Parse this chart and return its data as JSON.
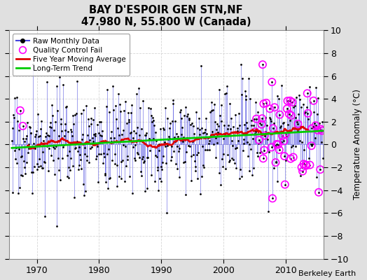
{
  "title": "BAY D'ESPOIR GEN STN,NF",
  "subtitle": "47.980 N, 55.800 W (Canada)",
  "ylabel": "Temperature Anomaly (°C)",
  "credit": "Berkeley Earth",
  "ylim": [
    -10,
    10
  ],
  "xlim": [
    1965.5,
    2016.0
  ],
  "xticks": [
    1970,
    1980,
    1990,
    2000,
    2010
  ],
  "yticks": [
    -10,
    -8,
    -6,
    -4,
    -2,
    0,
    2,
    4,
    6,
    8,
    10
  ],
  "plot_bg": "#ffffff",
  "fig_bg": "#e0e0e0",
  "raw_color": "#4444dd",
  "qc_color": "#ff00ff",
  "ma_color": "#dd0000",
  "trend_color": "#00cc00",
  "grid_color": "#cccccc",
  "seed": 17,
  "noise_std": 2.2,
  "start_year": 1966.0,
  "n_years": 50
}
